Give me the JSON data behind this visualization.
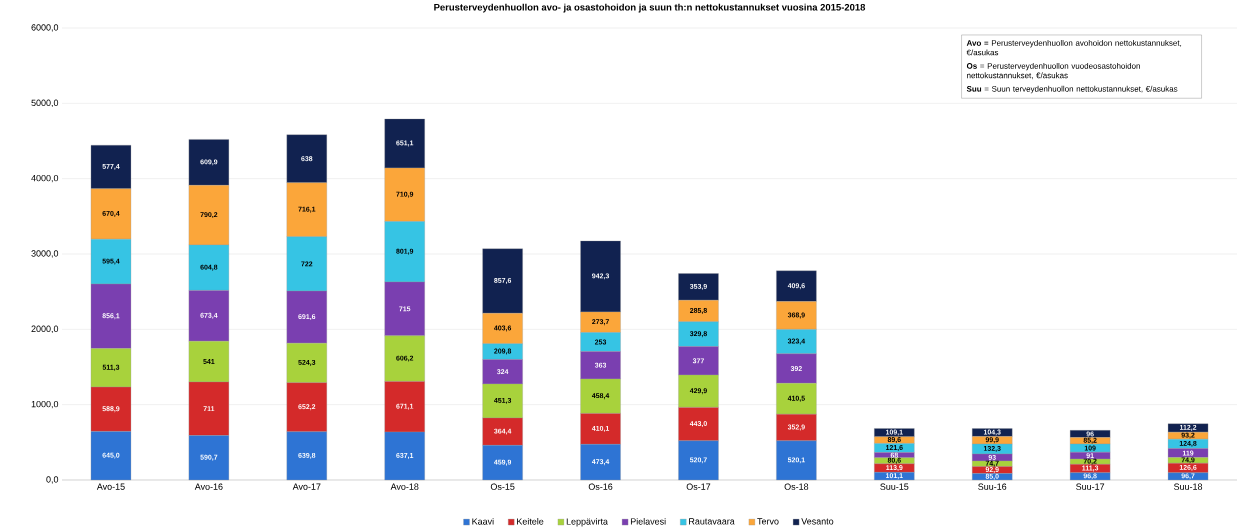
{
  "chart_data": {
    "type": "bar",
    "stacked": true,
    "title": "Perusterveydenhuollon avo- ja osastohoidon ja suun th:n nettokustannukset vuosina 2015-2018",
    "categories": [
      "Avo-15",
      "Avo-16",
      "Avo-17",
      "Avo-18",
      "Os-15",
      "Os-16",
      "Os-17",
      "Os-18",
      "Suu-15",
      "Suu-16",
      "Suu-17",
      "Suu-18"
    ],
    "series": [
      {
        "name": "Kaavi",
        "color": "#2e74d4",
        "values": [
          645.0,
          590.7,
          639.8,
          637.1,
          459.9,
          473.4,
          520.7,
          520.1,
          101.1,
          85.0,
          96.8,
          96.7
        ],
        "value_labels": [
          "645,0",
          "590,7",
          "639,8",
          "637,1",
          "459,9",
          "473,4",
          "520,7",
          "520,1",
          "101,1",
          "85,0",
          "96,8",
          "96,7"
        ]
      },
      {
        "name": "Keitele",
        "color": "#d42a2a",
        "values": [
          588.9,
          711,
          652.2,
          671.1,
          364.4,
          410.1,
          443.0,
          352.9,
          113.9,
          92.9,
          111.3,
          126.6
        ],
        "value_labels": [
          "588,9",
          "711",
          "652,2",
          "671,1",
          "364,4",
          "410,1",
          "443,0",
          "352,9",
          "113,9",
          "92,9",
          "111,3",
          "126,6"
        ]
      },
      {
        "name": "Leppävirta",
        "color": "#a8d23c",
        "values": [
          511.3,
          541,
          524.3,
          606.2,
          451.3,
          458.4,
          429.9,
          410.5,
          80.6,
          74.7,
          70.2,
          74.9
        ],
        "value_labels": [
          "511,3",
          "541",
          "524,3",
          "606,2",
          "451,3",
          "458,4",
          "429,9",
          "410,5",
          "80,6",
          "74,7",
          "70,2",
          "74,9"
        ]
      },
      {
        "name": "Pielavesi",
        "color": "#7a3fb0",
        "values": [
          856.1,
          673.4,
          691.6,
          715,
          324,
          363,
          377,
          392,
          68,
          93,
          91,
          119
        ],
        "value_labels": [
          "856,1",
          "673,4",
          "691,6",
          "715",
          "324",
          "363",
          "377",
          "392",
          "68",
          "93",
          "91",
          "119"
        ]
      },
      {
        "name": "Rautavaara",
        "color": "#36c4e4",
        "values": [
          595.4,
          604.8,
          722,
          801.9,
          209.8,
          253,
          329.8,
          323.4,
          121.6,
          132.3,
          109,
          124.8
        ],
        "value_labels": [
          "595,4",
          "604,8",
          "722",
          "801,9",
          "209,8",
          "253",
          "329,8",
          "323,4",
          "121,6",
          "132,3",
          "109",
          "124,8"
        ]
      },
      {
        "name": "Tervo",
        "color": "#fba63a",
        "values": [
          670.4,
          790.2,
          716.1,
          710.9,
          403.6,
          273.7,
          285.8,
          368.9,
          89.6,
          99.9,
          85.2,
          93.2
        ],
        "value_labels": [
          "670,4",
          "790,2",
          "716,1",
          "710,9",
          "403,6",
          "273,7",
          "285,8",
          "368,9",
          "89,6",
          "99,9",
          "85,2",
          "93,2"
        ]
      },
      {
        "name": "Vesanto",
        "color": "#112250",
        "values": [
          577.4,
          609.9,
          638,
          651.1,
          857.6,
          942.3,
          353.9,
          409.6,
          109.1,
          104.3,
          96,
          112.2
        ],
        "value_labels": [
          "577,4",
          "609,9",
          "638",
          "651,1",
          "857,6",
          "942,3",
          "353,9",
          "409,6",
          "109,1",
          "104,3",
          "96",
          "112,2"
        ]
      }
    ],
    "ylim": [
      0,
      6000
    ],
    "yticks": [
      {
        "value": 0,
        "label": "0,0"
      },
      {
        "value": 1000,
        "label": "1000,0"
      },
      {
        "value": 2000,
        "label": "2000,0"
      },
      {
        "value": 3000,
        "label": "3000,0"
      },
      {
        "value": 4000,
        "label": "4000,0"
      },
      {
        "value": 5000,
        "label": "5000,0"
      },
      {
        "value": 6000,
        "label": "6000,0"
      }
    ],
    "grid": "y",
    "legend": "bottom",
    "annotations": [
      "**Avo** = Perusterveydenhuollon avohoidon nettokustannukset, €/asukas",
      "**Os** = Perusterveydenhuollon vuodeosastohoidon nettokustannukset, €/asukas",
      "**Suu** = Suun terveydenhuollon nettokustannukset, €/asukas"
    ]
  }
}
